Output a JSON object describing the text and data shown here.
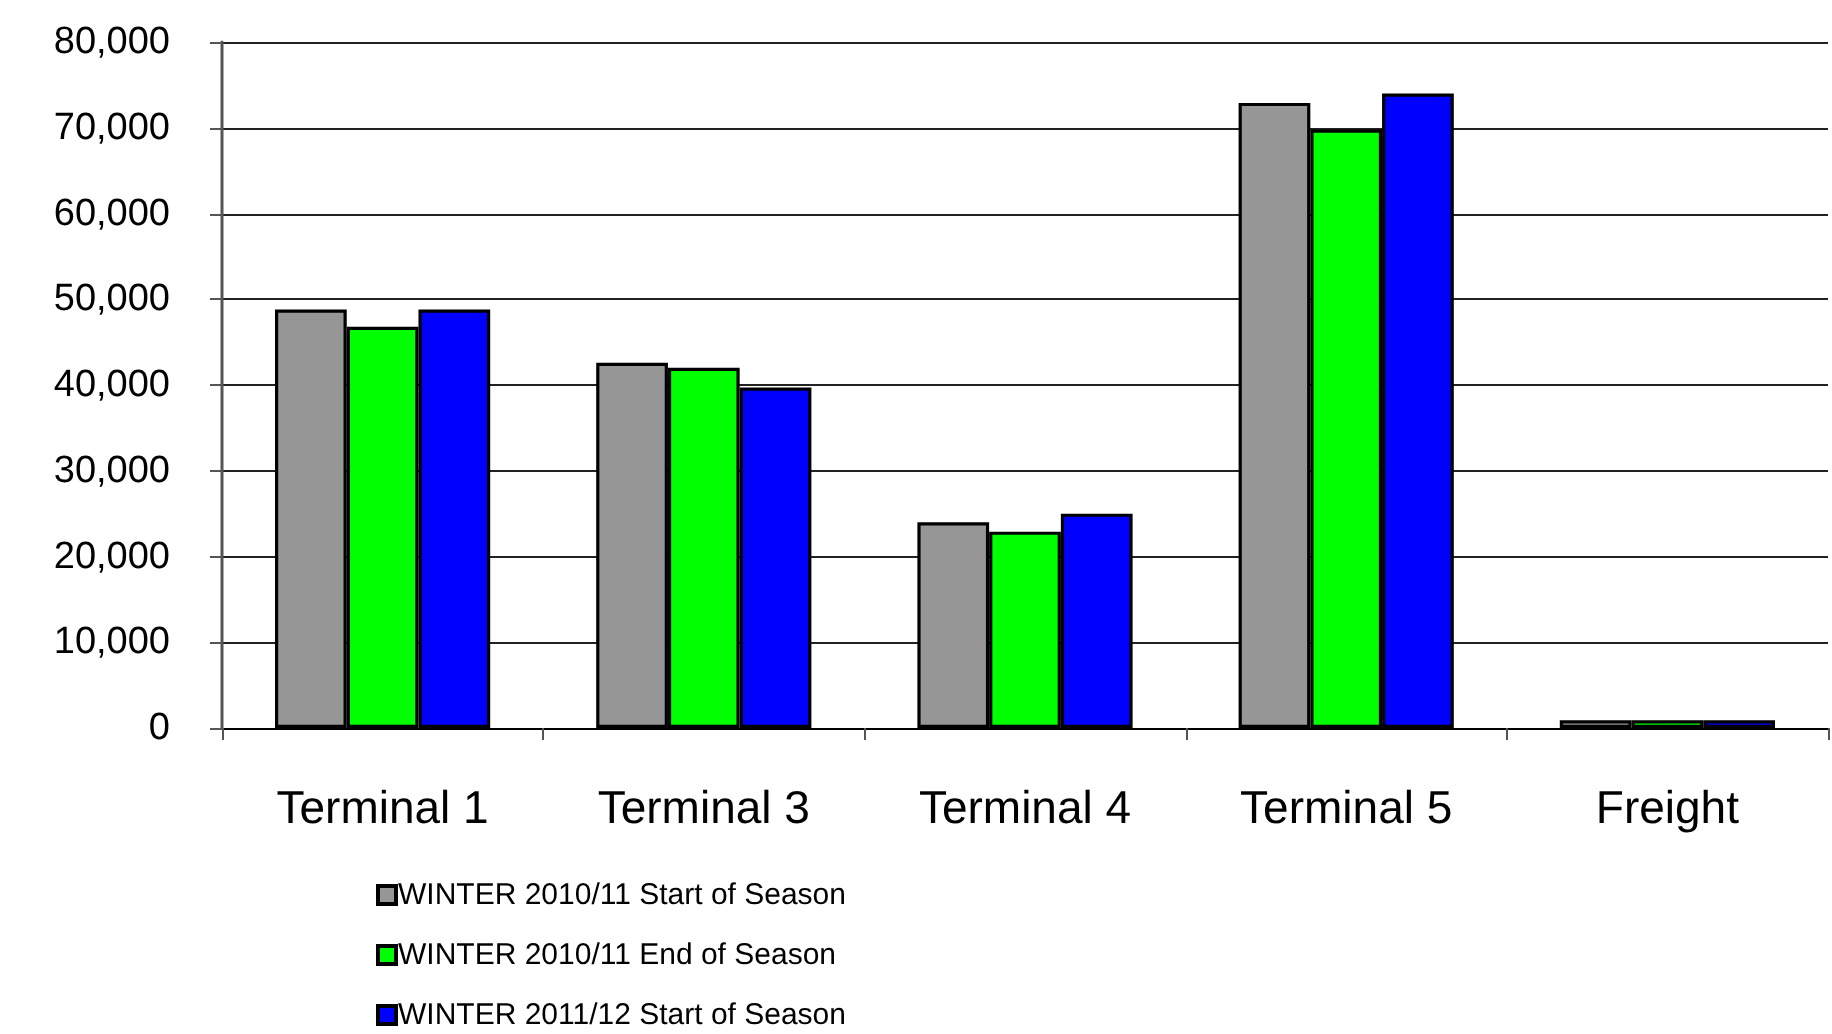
{
  "chart_data": {
    "type": "bar",
    "categories": [
      "Terminal 1",
      "Terminal 3",
      "Terminal 4",
      "Terminal 5",
      "Freight"
    ],
    "series": [
      {
        "name": "WINTER 2010/11 Start of Season",
        "color": "#969696",
        "values": [
          48800,
          42600,
          24000,
          72900,
          900
        ]
      },
      {
        "name": "WINTER 2010/11 End of Season",
        "color": "#00ff00",
        "values": [
          46800,
          42000,
          22900,
          69800,
          900
        ]
      },
      {
        "name": "WINTER 2011/12 Start of Season",
        "color": "#0000ff",
        "values": [
          48800,
          39700,
          25000,
          74000,
          900
        ]
      }
    ],
    "ylim": [
      0,
      80000
    ],
    "yticks": [
      0,
      {
        "value": 10000,
        "label": "10,000"
      },
      {
        "value": 20000,
        "label": "20,000"
      },
      {
        "value": 30000,
        "label": "30,000"
      },
      {
        "value": 40000,
        "label": "40,000"
      },
      {
        "value": 50000,
        "label": "50,000"
      },
      {
        "value": 60000,
        "label": "60,000"
      },
      {
        "value": 70000,
        "label": "70,000"
      },
      {
        "value": 80000,
        "label": "80,000"
      }
    ],
    "grid": "y",
    "legend": "bottom left"
  }
}
